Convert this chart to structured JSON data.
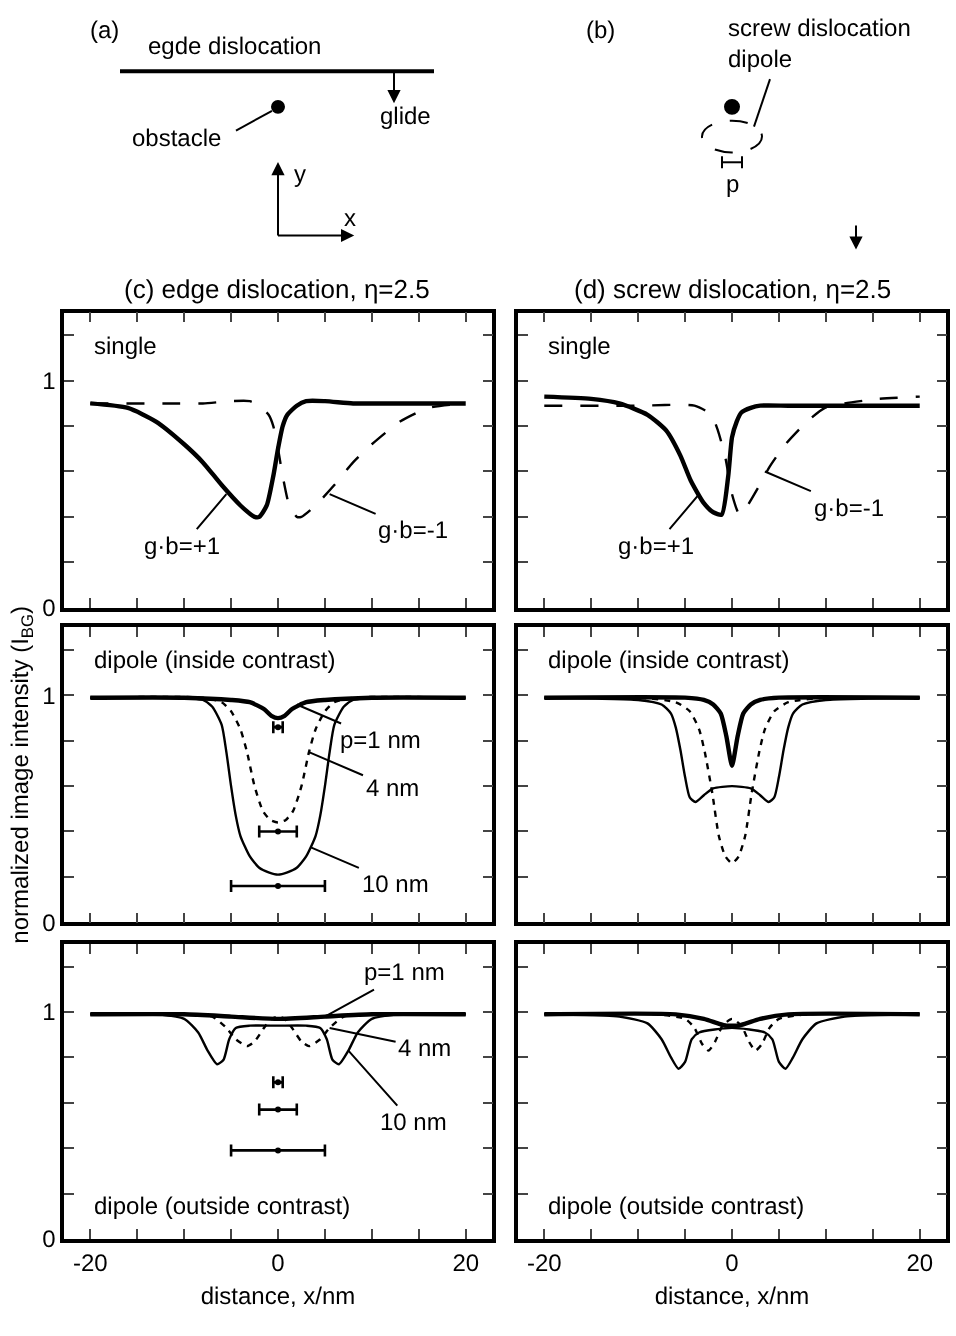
{
  "chart_data": [
    {
      "type": "other",
      "annotations": [
        "(a)",
        "egde dislocation",
        "obstacle",
        "glide",
        "y",
        "x",
        "(b)",
        "screw dislocation\ndipole",
        "p"
      ]
    },
    {
      "type": "line",
      "title": "(c) edge dislocation, η=2.5",
      "xlim": [
        -22.8,
        22.8
      ],
      "ylim": [
        0,
        1.3
      ],
      "tick_labels": "y",
      "xticks": [
        -20,
        {
          "value": -15,
          "label": null
        },
        {
          "value": -10,
          "label": null
        },
        {
          "value": -5,
          "label": null
        },
        0,
        {
          "value": 5,
          "label": null
        },
        {
          "value": 10,
          "label": null
        },
        {
          "value": 15,
          "label": null
        },
        20
      ],
      "yticks": [
        0,
        {
          "value": 0.2,
          "label": null
        },
        {
          "value": 0.4,
          "label": null
        },
        {
          "value": 0.6,
          "label": null
        },
        {
          "value": 0.8,
          "label": null
        },
        1,
        {
          "value": 1.2,
          "label": null
        }
      ],
      "annotations": [
        "single",
        {
          "text": "g·b=+1",
          "x": -5.5,
          "y": 0.5
        },
        {
          "text": "g·b=-1",
          "x": 5.5,
          "y": 0.5
        }
      ],
      "series": [
        {
          "color": "#000000",
          "line_style": "solid",
          "x": [
            -20,
            -16,
            -13,
            -10,
            -8,
            -6,
            -4,
            -2.5,
            -2,
            -1.2,
            -0.5,
            0,
            0.5,
            1,
            2,
            3,
            5,
            8,
            12,
            20
          ],
          "values": [
            0.9,
            0.88,
            0.82,
            0.72,
            0.64,
            0.54,
            0.45,
            0.4,
            0.4,
            0.45,
            0.58,
            0.7,
            0.8,
            0.85,
            0.89,
            0.91,
            0.91,
            0.9,
            0.9,
            0.9
          ]
        },
        {
          "color": "#000000",
          "line_style": "dashed",
          "x": [
            -20,
            -12,
            -8,
            -5,
            -3,
            -2,
            -1,
            -0.5,
            0,
            0.5,
            1.2,
            2,
            2.5,
            4,
            6,
            8,
            10,
            13,
            16,
            20
          ],
          "values": [
            0.9,
            0.9,
            0.9,
            0.91,
            0.91,
            0.89,
            0.85,
            0.8,
            0.7,
            0.58,
            0.45,
            0.4,
            0.4,
            0.45,
            0.54,
            0.64,
            0.72,
            0.82,
            0.88,
            0.9
          ]
        }
      ]
    },
    {
      "type": "line",
      "title": "(d) screw dislocation, η=2.5",
      "xlim": [
        -22.8,
        22.8
      ],
      "ylim": [
        0,
        1.3
      ],
      "tick_labels": false,
      "xticks": [
        -20,
        {
          "value": -15,
          "label": null
        },
        {
          "value": -10,
          "label": null
        },
        {
          "value": -5,
          "label": null
        },
        0,
        {
          "value": 5,
          "label": null
        },
        {
          "value": 10,
          "label": null
        },
        {
          "value": 15,
          "label": null
        },
        20
      ],
      "yticks": [
        0,
        {
          "value": 0.2,
          "label": null
        },
        {
          "value": 0.4,
          "label": null
        },
        {
          "value": 0.6,
          "label": null
        },
        {
          "value": 0.8,
          "label": null
        },
        1,
        {
          "value": 1.2,
          "label": null
        }
      ],
      "annotations": [
        "single",
        {
          "text": "g·b=+1",
          "x": -3.5,
          "y": 0.5
        },
        {
          "text": "g·b=-1",
          "x": 3.5,
          "y": 0.6
        }
      ],
      "series": [
        {
          "color": "#000000",
          "line_style": "solid",
          "x": [
            -20,
            -15,
            -12,
            -9,
            -7,
            -5.5,
            -4.4,
            -3,
            -2,
            -1.1,
            -0.4,
            0,
            0.5,
            1,
            2,
            3,
            6,
            10,
            20
          ],
          "values": [
            0.93,
            0.92,
            0.9,
            0.85,
            0.78,
            0.67,
            0.56,
            0.46,
            0.42,
            0.41,
            0.58,
            0.75,
            0.82,
            0.86,
            0.88,
            0.89,
            0.89,
            0.89,
            0.89
          ]
        },
        {
          "color": "#000000",
          "line_style": "dashed",
          "x": [
            -20,
            -10,
            -4,
            -2.2,
            -1.5,
            -0.7,
            0,
            0.8,
            1.5,
            2.8,
            4,
            5.7,
            8,
            9.9,
            12,
            15.6,
            20
          ],
          "values": [
            0.89,
            0.89,
            0.89,
            0.85,
            0.78,
            0.66,
            0.5,
            0.41,
            0.44,
            0.53,
            0.62,
            0.72,
            0.82,
            0.88,
            0.9,
            0.92,
            0.93
          ]
        }
      ]
    },
    {
      "type": "line",
      "ylabel": "normalized image intensity (I$_{BG}$)",
      "xlim": [
        -22.8,
        22.8
      ],
      "ylim": [
        0,
        1.3
      ],
      "tick_labels": "y",
      "xticks": [
        -20,
        {
          "value": -15,
          "label": null
        },
        {
          "value": -10,
          "label": null
        },
        {
          "value": -5,
          "label": null
        },
        0,
        {
          "value": 5,
          "label": null
        },
        {
          "value": 10,
          "label": null
        },
        {
          "value": 15,
          "label": null
        },
        20
      ],
      "yticks": [
        0,
        {
          "value": 0.2,
          "label": null
        },
        {
          "value": 0.4,
          "label": null
        },
        {
          "value": 0.6,
          "label": null
        },
        {
          "value": 0.8,
          "label": null
        },
        1,
        {
          "value": 1.2,
          "label": null
        }
      ],
      "annotations": [
        "dipole (inside contrast)",
        {
          "text": "p=1 nm",
          "x": 2,
          "y": 0.96
        },
        {
          "text": "4 nm",
          "x": 3.3,
          "y": 0.75
        },
        {
          "text": "10 nm",
          "x": 3.5,
          "y": 0.33
        }
      ],
      "series": [
        {
          "color": "#000000",
          "line_style": "solid",
          "x": [
            -20,
            -10,
            -5,
            -3,
            -1.5,
            -0.7,
            0,
            0.7,
            1.5,
            3,
            5,
            10,
            20
          ],
          "values": [
            0.99,
            0.99,
            0.98,
            0.97,
            0.94,
            0.91,
            0.9,
            0.91,
            0.94,
            0.97,
            0.98,
            0.99,
            0.99
          ]
        },
        {
          "color": "#000000",
          "line_style": "dotted",
          "x": [
            -20,
            -8,
            -6,
            -5,
            -4,
            -3.3,
            -2.5,
            -1.6,
            -0.8,
            0,
            0.8,
            1.6,
            2.5,
            3.3,
            4,
            5,
            6,
            8,
            20
          ],
          "values": [
            0.99,
            0.99,
            0.97,
            0.93,
            0.85,
            0.75,
            0.6,
            0.49,
            0.45,
            0.44,
            0.45,
            0.49,
            0.6,
            0.75,
            0.85,
            0.93,
            0.97,
            0.99,
            0.99
          ]
        },
        {
          "color": "#000000",
          "line_style": "solid",
          "x": [
            -20,
            -12,
            -8,
            -7,
            -6,
            -5.5,
            -5,
            -4.5,
            -4,
            -3,
            -2,
            -1,
            0,
            1,
            2,
            3,
            4,
            4.5,
            5,
            5.5,
            6,
            7,
            8,
            12,
            20
          ],
          "values": [
            0.99,
            0.99,
            0.98,
            0.95,
            0.87,
            0.75,
            0.6,
            0.47,
            0.38,
            0.29,
            0.24,
            0.22,
            0.21,
            0.22,
            0.24,
            0.29,
            0.38,
            0.47,
            0.6,
            0.75,
            0.87,
            0.95,
            0.98,
            0.99,
            0.99
          ]
        },
        {
          "type": "scatter",
          "color": "#000000",
          "x": [
            0,
            0,
            0
          ],
          "values": [
            0.86,
            0.4,
            0.16
          ],
          "xerrors": [
            0.5,
            2,
            5
          ]
        }
      ]
    },
    {
      "type": "line",
      "xlim": [
        -22.8,
        22.8
      ],
      "ylim": [
        0,
        1.3
      ],
      "tick_labels": false,
      "xticks": [
        -20,
        {
          "value": -15,
          "label": null
        },
        {
          "value": -10,
          "label": null
        },
        {
          "value": -5,
          "label": null
        },
        0,
        {
          "value": 5,
          "label": null
        },
        {
          "value": 10,
          "label": null
        },
        {
          "value": 15,
          "label": null
        },
        20
      ],
      "yticks": [
        0,
        {
          "value": 0.2,
          "label": null
        },
        {
          "value": 0.4,
          "label": null
        },
        {
          "value": 0.6,
          "label": null
        },
        {
          "value": 0.8,
          "label": null
        },
        1,
        {
          "value": 1.2,
          "label": null
        }
      ],
      "annotations": [
        "dipole (inside contrast)"
      ],
      "series": [
        {
          "color": "#000000",
          "line_style": "solid",
          "x": [
            -20,
            -5,
            -3,
            -2,
            -1.2,
            -0.6,
            0,
            0.6,
            1.2,
            2,
            3,
            5,
            20
          ],
          "values": [
            0.99,
            0.99,
            0.98,
            0.96,
            0.92,
            0.82,
            0.69,
            0.82,
            0.92,
            0.96,
            0.98,
            0.99,
            0.99
          ]
        },
        {
          "color": "#000000",
          "line_style": "dotted",
          "x": [
            -20,
            -10,
            -6,
            -4.5,
            -3.5,
            -2.9,
            -2.1,
            -1.4,
            -0.7,
            0,
            0.7,
            1.4,
            2.1,
            2.9,
            3.5,
            4.5,
            6,
            10,
            20
          ],
          "values": [
            0.99,
            0.99,
            0.97,
            0.93,
            0.85,
            0.75,
            0.57,
            0.38,
            0.29,
            0.26,
            0.29,
            0.38,
            0.57,
            0.75,
            0.85,
            0.93,
            0.97,
            0.99,
            0.99
          ]
        },
        {
          "color": "#000000",
          "line_style": "solid",
          "x": [
            -20,
            -10,
            -7.5,
            -6.5,
            -6,
            -5.5,
            -5,
            -4.5,
            -3.9,
            -3,
            -2,
            0,
            2,
            3,
            3.9,
            4.5,
            5,
            5.5,
            6,
            6.5,
            7.5,
            10,
            20
          ],
          "values": [
            0.99,
            0.98,
            0.96,
            0.92,
            0.86,
            0.76,
            0.64,
            0.55,
            0.53,
            0.56,
            0.59,
            0.6,
            0.59,
            0.56,
            0.53,
            0.55,
            0.64,
            0.76,
            0.86,
            0.92,
            0.96,
            0.98,
            0.99
          ]
        }
      ]
    },
    {
      "type": "line",
      "xlabel": "distance, x/nm",
      "xlim": [
        -22.8,
        22.8
      ],
      "ylim": [
        0,
        1.3
      ],
      "xticks": [
        -20,
        {
          "value": -15,
          "label": null
        },
        {
          "value": -10,
          "label": null
        },
        {
          "value": -5,
          "label": null
        },
        0,
        {
          "value": 5,
          "label": null
        },
        {
          "value": 10,
          "label": null
        },
        {
          "value": 15,
          "label": null
        },
        20
      ],
      "yticks": [
        0,
        {
          "value": 0.2,
          "label": null
        },
        {
          "value": 0.4,
          "label": null
        },
        {
          "value": 0.6,
          "label": null
        },
        {
          "value": 0.8,
          "label": null
        },
        1,
        {
          "value": 1.2,
          "label": null
        }
      ],
      "annotations": [
        "dipole (outside contrast)",
        {
          "text": "p=1 nm",
          "x": 5,
          "y": 0.98
        },
        {
          "text": "4 nm",
          "x": 5.5,
          "y": 0.93
        },
        {
          "text": "10 nm",
          "x": 7.5,
          "y": 0.83
        }
      ],
      "series": [
        {
          "color": "#000000",
          "line_style": "solid",
          "x": [
            -20,
            -10,
            -5,
            0,
            5,
            10,
            20
          ],
          "values": [
            0.99,
            0.99,
            0.98,
            0.97,
            0.98,
            0.99,
            0.99
          ]
        },
        {
          "color": "#000000",
          "line_style": "dotted",
          "x": [
            -20,
            -10,
            -7,
            -5.5,
            -4.5,
            -3.3,
            -2.5,
            -1.5,
            -0.7,
            0,
            0.7,
            1.5,
            2.5,
            3.3,
            4.5,
            5.5,
            7,
            10,
            20
          ],
          "values": [
            0.99,
            0.99,
            0.98,
            0.93,
            0.88,
            0.85,
            0.87,
            0.93,
            0.97,
            0.98,
            0.97,
            0.93,
            0.87,
            0.85,
            0.88,
            0.93,
            0.98,
            0.99,
            0.99
          ]
        },
        {
          "color": "#000000",
          "line_style": "solid",
          "x": [
            -20,
            -13,
            -10,
            -8.5,
            -7.5,
            -6.5,
            -5.8,
            -5.2,
            -4.5,
            -3,
            0,
            3,
            4.5,
            5.2,
            5.8,
            6.5,
            7.5,
            8.5,
            10,
            13,
            20
          ],
          "values": [
            0.99,
            0.99,
            0.97,
            0.91,
            0.83,
            0.77,
            0.79,
            0.88,
            0.93,
            0.94,
            0.94,
            0.94,
            0.93,
            0.88,
            0.79,
            0.77,
            0.83,
            0.91,
            0.97,
            0.99,
            0.99
          ]
        },
        {
          "type": "scatter",
          "color": "#000000",
          "x": [
            0,
            0,
            0
          ],
          "values": [
            0.69,
            0.57,
            0.39
          ],
          "xerrors": [
            0.5,
            2,
            5
          ]
        }
      ]
    },
    {
      "type": "line",
      "xlabel": "distance, x/nm",
      "xlim": [
        -22.8,
        22.8
      ],
      "ylim": [
        0,
        1.3
      ],
      "tick_labels": "x",
      "xticks": [
        -20,
        {
          "value": -15,
          "label": null
        },
        {
          "value": -10,
          "label": null
        },
        {
          "value": -5,
          "label": null
        },
        0,
        {
          "value": 5,
          "label": null
        },
        {
          "value": 10,
          "label": null
        },
        {
          "value": 15,
          "label": null
        },
        20
      ],
      "yticks": [
        0,
        {
          "value": 0.2,
          "label": null
        },
        {
          "value": 0.4,
          "label": null
        },
        {
          "value": 0.6,
          "label": null
        },
        {
          "value": 0.8,
          "label": null
        },
        1,
        {
          "value": 1.2,
          "label": null
        }
      ],
      "annotations": [
        "dipole (outside contrast)"
      ],
      "series": [
        {
          "color": "#000000",
          "line_style": "solid",
          "x": [
            -20,
            -6,
            -3,
            -1.5,
            -0.6,
            0,
            0.6,
            1.5,
            3,
            6,
            20
          ],
          "values": [
            0.99,
            0.99,
            0.97,
            0.95,
            0.94,
            0.94,
            0.94,
            0.95,
            0.97,
            0.99,
            0.99
          ]
        },
        {
          "color": "#000000",
          "line_style": "dotted",
          "x": [
            -20,
            -8,
            -5,
            -4,
            -3.2,
            -2.5,
            -1.8,
            -1,
            0,
            1,
            1.8,
            2.5,
            3.2,
            4,
            5,
            8,
            20
          ],
          "values": [
            0.99,
            0.99,
            0.97,
            0.93,
            0.86,
            0.83,
            0.87,
            0.94,
            0.97,
            0.94,
            0.87,
            0.83,
            0.86,
            0.93,
            0.97,
            0.99,
            0.99
          ]
        },
        {
          "color": "#000000",
          "line_style": "solid",
          "x": [
            -20,
            -12,
            -9,
            -7.5,
            -6.5,
            -5.7,
            -5,
            -4.3,
            -3.5,
            0,
            3.5,
            4.3,
            5,
            5.7,
            6.5,
            7.5,
            9,
            12,
            20
          ],
          "values": [
            0.99,
            0.98,
            0.95,
            0.88,
            0.8,
            0.75,
            0.78,
            0.88,
            0.91,
            0.93,
            0.91,
            0.88,
            0.78,
            0.75,
            0.8,
            0.88,
            0.95,
            0.98,
            0.99
          ]
        }
      ]
    }
  ]
}
